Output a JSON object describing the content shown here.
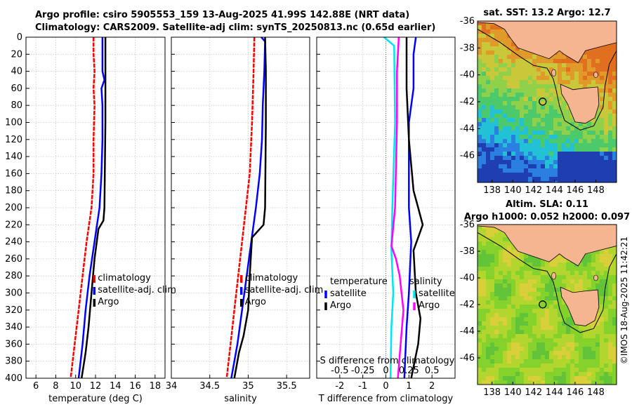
{
  "header": {
    "line1": "Argo profile: csiro 5905553_159 13-Aug-2025 41.99S 142.88E (NRT data)",
    "line2": "Climatology: CARS2009. Satellite-adj clim: synTS_20250813.nc (0.65d earlier)"
  },
  "maps": {
    "sst_title": "sat. SST: 13.2 Argo: 12.7",
    "sla_title1": "Altim. SLA: 0.11",
    "sla_title2": "Argo h1000: 0.052 h2000: 0.097",
    "lat_ticks": [
      "-36",
      "-38",
      "-40",
      "-42",
      "-44",
      "-46"
    ],
    "lon_ticks": [
      "138",
      "140",
      "142",
      "144",
      "146",
      "148"
    ],
    "argo_marker": {
      "lon": 142.88,
      "lat": -41.99
    }
  },
  "credit": "©IMOS 18-Aug-2025 11:42:21",
  "chart_data": [
    {
      "type": "line",
      "name": "temperature",
      "xlabel": "temperature (deg C)",
      "ylabel": "depth",
      "xlim": [
        5,
        19
      ],
      "ylim": [
        400,
        0
      ],
      "xticks": [
        6,
        8,
        10,
        12,
        14,
        16,
        18
      ],
      "yticks": [
        0,
        20,
        40,
        60,
        80,
        100,
        120,
        140,
        160,
        180,
        200,
        220,
        240,
        260,
        280,
        300,
        320,
        340,
        360,
        380,
        400
      ],
      "legend": [
        "climatology",
        "satellite-adj. clim",
        "Argo"
      ],
      "series": [
        {
          "name": "climatology",
          "color": "#ff0000",
          "points": [
            [
              11.8,
              0
            ],
            [
              11.8,
              20
            ],
            [
              11.9,
              40
            ],
            [
              11.8,
              60
            ],
            [
              11.9,
              80
            ],
            [
              11.8,
              120
            ],
            [
              11.8,
              160
            ],
            [
              11.6,
              200
            ],
            [
              11.1,
              240
            ],
            [
              10.7,
              280
            ],
            [
              10.3,
              320
            ],
            [
              9.9,
              360
            ],
            [
              9.5,
              400
            ]
          ]
        },
        {
          "name": "satellite-adj. clim",
          "color": "#0000ff",
          "points": [
            [
              12.7,
              0
            ],
            [
              12.7,
              40
            ],
            [
              12.9,
              50
            ],
            [
              12.6,
              60
            ],
            [
              12.7,
              80
            ],
            [
              12.7,
              120
            ],
            [
              12.6,
              160
            ],
            [
              12.4,
              200
            ],
            [
              11.9,
              240
            ],
            [
              11.4,
              280
            ],
            [
              11.0,
              320
            ],
            [
              10.7,
              360
            ],
            [
              10.3,
              400
            ]
          ]
        },
        {
          "name": "Argo",
          "color": "#000000",
          "points": [
            [
              13.0,
              0
            ],
            [
              13.0,
              40
            ],
            [
              13.0,
              100
            ],
            [
              12.9,
              200
            ],
            [
              12.8,
              215
            ],
            [
              12.3,
              225
            ],
            [
              11.9,
              260
            ],
            [
              11.6,
              300
            ],
            [
              11.3,
              340
            ],
            [
              11.0,
              370
            ],
            [
              10.6,
              400
            ]
          ]
        }
      ]
    },
    {
      "type": "line",
      "name": "salinity",
      "xlabel": "salinity",
      "ylabel": "depth",
      "xlim": [
        34,
        35.8
      ],
      "ylim": [
        400,
        0
      ],
      "xticks": [
        34,
        34.5,
        35,
        35.5
      ],
      "xtick_labels": [
        "34",
        "34.5",
        "35",
        "35.5"
      ],
      "legend": [
        "climatology",
        "satellite-adj. clim",
        "Argo"
      ],
      "series": [
        {
          "name": "climatology",
          "color": "#ff0000",
          "points": [
            [
              35.08,
              0
            ],
            [
              35.07,
              40
            ],
            [
              35.05,
              100
            ],
            [
              35.02,
              160
            ],
            [
              34.97,
              200
            ],
            [
              34.92,
              240
            ],
            [
              34.87,
              280
            ],
            [
              34.82,
              320
            ],
            [
              34.77,
              360
            ],
            [
              34.72,
              400
            ]
          ]
        },
        {
          "name": "satellite-adj. clim",
          "color": "#0000ff",
          "points": [
            [
              35.17,
              0
            ],
            [
              35.22,
              5
            ],
            [
              35.21,
              40
            ],
            [
              35.19,
              80
            ],
            [
              35.18,
              120
            ],
            [
              35.15,
              160
            ],
            [
              35.1,
              200
            ],
            [
              35.04,
              240
            ],
            [
              34.98,
              280
            ],
            [
              34.92,
              320
            ],
            [
              34.86,
              360
            ],
            [
              34.78,
              400
            ]
          ]
        },
        {
          "name": "Argo",
          "color": "#000000",
          "points": [
            [
              35.22,
              0
            ],
            [
              35.23,
              40
            ],
            [
              35.23,
              100
            ],
            [
              35.22,
              200
            ],
            [
              35.2,
              220
            ],
            [
              35.05,
              235
            ],
            [
              35.02,
              280
            ],
            [
              35.0,
              320
            ],
            [
              34.94,
              350
            ],
            [
              34.88,
              370
            ],
            [
              34.82,
              400
            ]
          ]
        }
      ]
    },
    {
      "type": "line",
      "name": "differences",
      "xlabel": "T difference from climatology",
      "x2label": "S difference from climatology",
      "ylabel": "depth",
      "xlim": [
        -3,
        3
      ],
      "ylim": [
        400,
        0
      ],
      "xticks": [
        -2,
        -1,
        0,
        1,
        2
      ],
      "xtick_labels": [
        "-2",
        "-1",
        "0",
        "1",
        "2"
      ],
      "x2ticks": [
        -0.5,
        -0.25,
        0,
        0.25,
        0.5
      ],
      "x2tick_labels": [
        "-0.5",
        "-0.25",
        "0",
        "0.25",
        "0.5"
      ],
      "x2lim": [
        -0.75,
        0.75
      ],
      "legend_left_title": "temperature",
      "legend_right_title": "salinity",
      "legend_left": [
        "satellite",
        "Argo"
      ],
      "legend_right": [
        "satellite",
        "Argo"
      ],
      "series": [
        {
          "name": "temperature satellite",
          "color": "#0000ff",
          "axis": "T",
          "points": [
            [
              1.3,
              0
            ],
            [
              1.2,
              20
            ],
            [
              1.2,
              60
            ],
            [
              1.0,
              100
            ],
            [
              1.0,
              200
            ],
            [
              1.1,
              240
            ],
            [
              1.0,
              300
            ],
            [
              0.9,
              340
            ],
            [
              0.8,
              400
            ]
          ]
        },
        {
          "name": "temperature Argo",
          "color": "#000000",
          "axis": "T",
          "points": [
            [
              0.9,
              0
            ],
            [
              0.9,
              60
            ],
            [
              1.0,
              120
            ],
            [
              1.2,
              180
            ],
            [
              1.4,
              200
            ],
            [
              1.6,
              220
            ],
            [
              1.2,
              250
            ],
            [
              1.3,
              300
            ],
            [
              1.5,
              330
            ],
            [
              1.4,
              360
            ],
            [
              1.1,
              400
            ]
          ]
        },
        {
          "name": "salinity satellite",
          "color": "#00e5ee",
          "axis": "S",
          "points": [
            [
              -0.02,
              0
            ],
            [
              0.09,
              10
            ],
            [
              0.1,
              100
            ],
            [
              0.07,
              200
            ],
            [
              0.06,
              250
            ],
            [
              0.08,
              300
            ],
            [
              0.06,
              340
            ],
            [
              0.05,
              400
            ]
          ]
        },
        {
          "name": "salinity Argo",
          "color": "#ff00ff",
          "axis": "S",
          "points": [
            [
              0.14,
              0
            ],
            [
              0.12,
              40
            ],
            [
              0.12,
              100
            ],
            [
              0.1,
              200
            ],
            [
              0.06,
              245
            ],
            [
              0.11,
              260
            ],
            [
              0.15,
              280
            ],
            [
              0.17,
              300
            ],
            [
              0.19,
              320
            ],
            [
              0.16,
              360
            ],
            [
              0.13,
              400
            ]
          ]
        }
      ]
    }
  ]
}
